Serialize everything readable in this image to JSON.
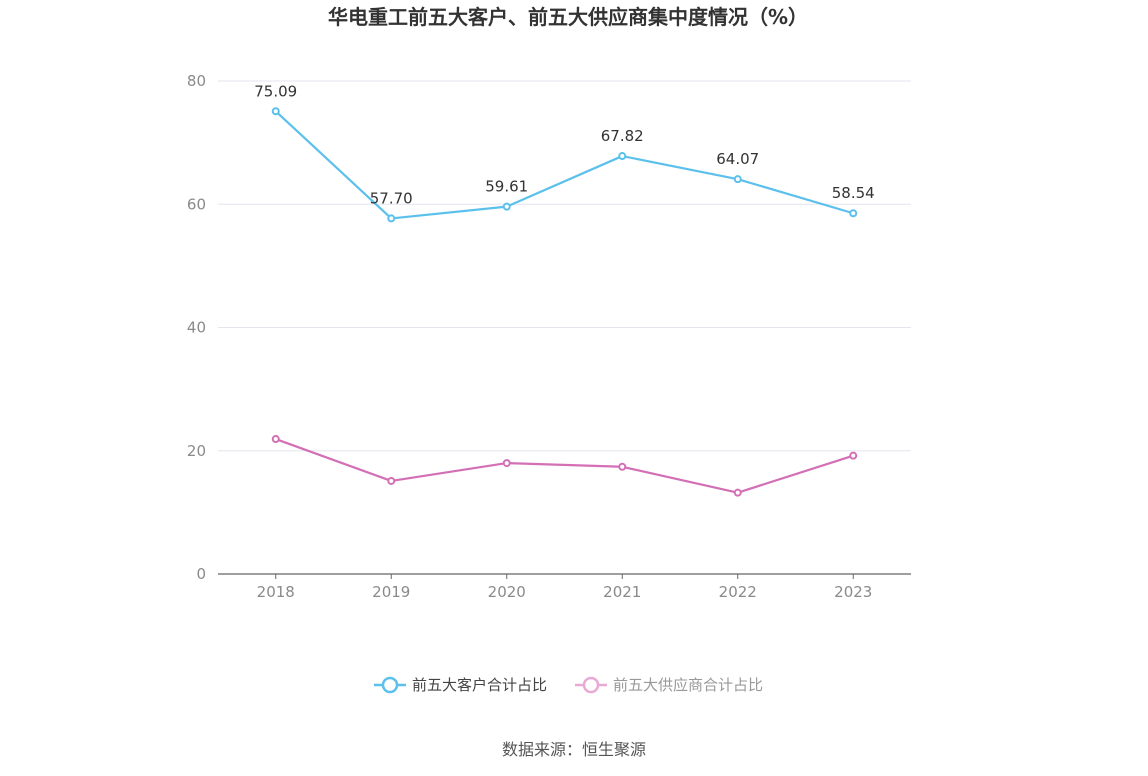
{
  "chart_data": {
    "type": "line",
    "title": "华电重工前五大客户、前五大供应商集中度情况（%）",
    "categories": [
      "2018",
      "2019",
      "2020",
      "2021",
      "2022",
      "2023"
    ],
    "ylim": [
      0,
      80
    ],
    "yticks": [
      "0",
      "20",
      "40",
      "60",
      "80"
    ],
    "grid": true,
    "legend_position": "bottom",
    "series": [
      {
        "name": "前五大客户合计占比",
        "values": [
          75.09,
          57.7,
          59.61,
          67.82,
          64.07,
          58.54
        ],
        "labels": [
          "75.09",
          "57.70",
          "59.61",
          "67.82",
          "64.07",
          "58.54"
        ],
        "color": "#5bc0eb"
      },
      {
        "name": "前五大供应商合计占比",
        "values": [
          21.9,
          15.1,
          18.0,
          17.4,
          13.2,
          19.2
        ],
        "color": "#d36fb5"
      }
    ],
    "legend_colors": [
      "#5bc0eb",
      "#e9a9d5"
    ],
    "legend_text_colors": [
      "#444444",
      "#999999"
    ]
  },
  "source": "数据来源：恒生聚源",
  "colors": {
    "grid": "#e3e6f0",
    "axis": "#666666"
  }
}
